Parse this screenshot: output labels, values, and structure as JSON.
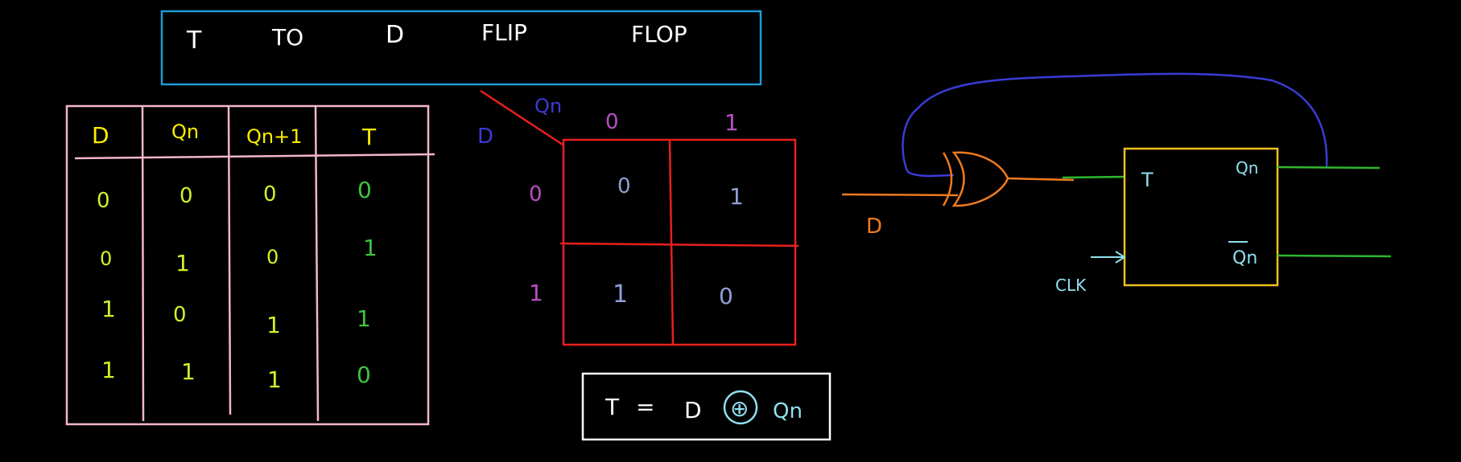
{
  "colors": {
    "background": "#000000",
    "title_box": "#1e9ad6",
    "title_text": "#ffffff",
    "table_border": "#f5b6c8",
    "table_header": "#ffee00",
    "table_value": "#d4f02a",
    "table_t_zero": "#3ec43e",
    "kmap_border": "#e8201e",
    "kmap_qn": "#3b3bd6",
    "kmap_d": "#3b3bd6",
    "kmap_header": "#b84fc4",
    "kmap_cell": "#8ea0d8",
    "equation_box": "#ffffff",
    "equation_circle": "#8fe0f0",
    "gate": "#f07a1e",
    "feedback": "#3b3bd6",
    "flipflop": "#f0c020",
    "flipflop_label": "#8fe0f0",
    "output_line": "#2eb82e"
  },
  "title": {
    "words": [
      "T",
      "TO",
      "D",
      "FLIP",
      "FLOP"
    ]
  },
  "truth_table": {
    "headers": {
      "d": "D",
      "qn": "Qn",
      "qn1": "Qn+1",
      "t": "T"
    },
    "rows": [
      {
        "d": "0",
        "qn": "0",
        "qn1": "0",
        "t": "0"
      },
      {
        "d": "0",
        "qn": "1",
        "qn1": "0",
        "t": "1"
      },
      {
        "d": "1",
        "qn": "0",
        "qn1": "1",
        "t": "1"
      },
      {
        "d": "1",
        "qn": "1",
        "qn1": "1",
        "t": "0"
      }
    ]
  },
  "kmap": {
    "col_var": "Qn",
    "row_var": "D",
    "col_headers": [
      "0",
      "1"
    ],
    "row_headers": [
      "0",
      "1"
    ],
    "cells": [
      [
        "0",
        "1"
      ],
      [
        "1",
        "0"
      ]
    ]
  },
  "equation": {
    "lhs": "T",
    "equals": "=",
    "a": "D",
    "op": "⊕",
    "b": "Qn"
  },
  "circuit": {
    "input": "D",
    "ff_t": "T",
    "ff_q": "Qn",
    "ff_qbar": "Qn",
    "clock": "CLK"
  }
}
